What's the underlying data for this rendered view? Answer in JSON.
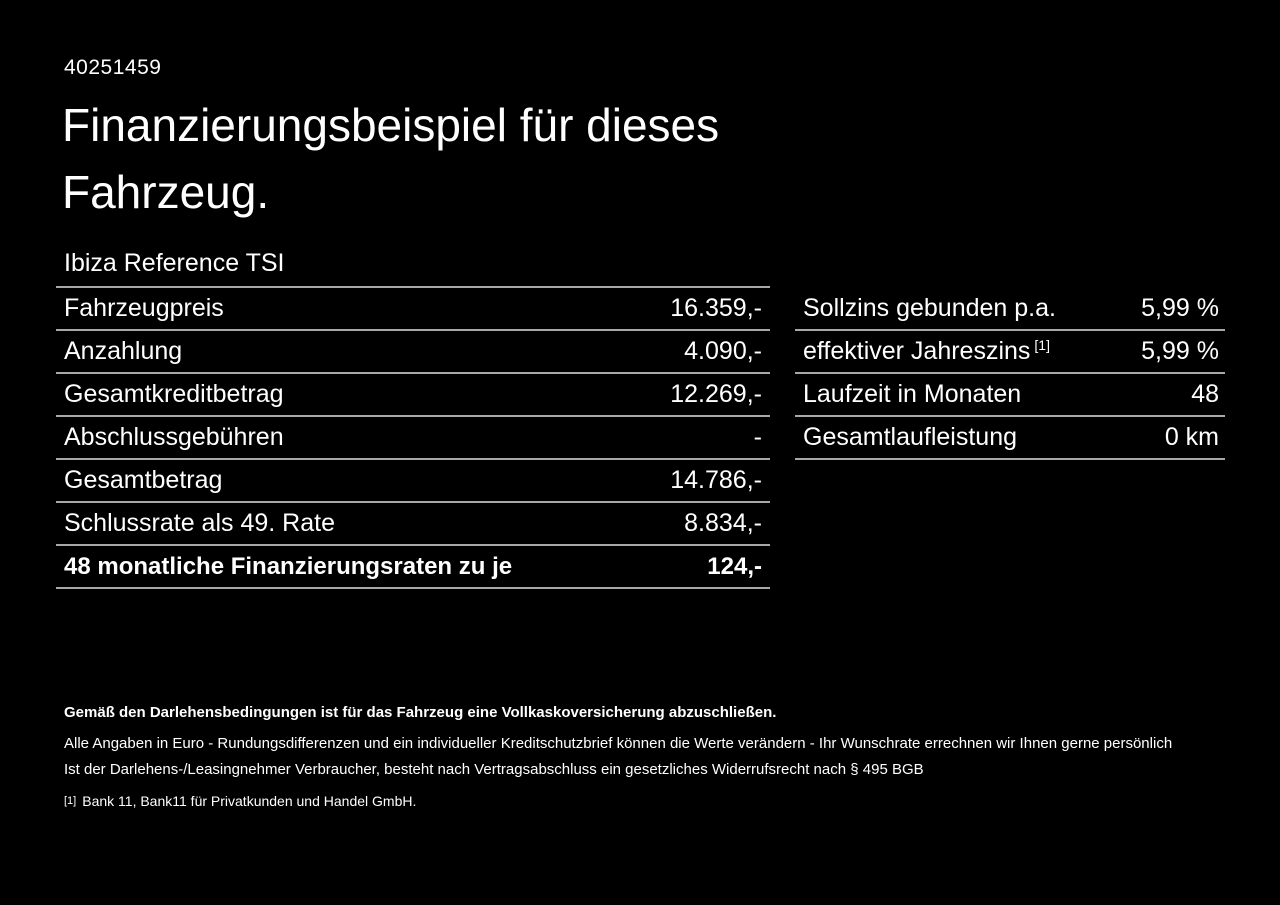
{
  "page": {
    "id_number": "40251459",
    "title_line1": "Finanzierungsbeispiel für dieses",
    "title_line2": "Fahrzeug.",
    "subtitle": "Ibiza Reference TSI"
  },
  "finance_table": {
    "rows": [
      {
        "label": "Fahrzeugpreis",
        "value": "16.359,-"
      },
      {
        "label": "Anzahlung",
        "value": "4.090,-"
      },
      {
        "label": "Gesamtkreditbetrag",
        "value": "12.269,-"
      },
      {
        "label": "Abschlussgebühren",
        "value": "-"
      },
      {
        "label": "Gesamtbetrag",
        "value": "14.786,-"
      },
      {
        "label": "Schlussrate als 49. Rate",
        "value": "8.834,-"
      },
      {
        "label": "48 monatliche Finanzierungsraten zu je",
        "value": "124,-"
      }
    ]
  },
  "conditions_table": {
    "rows": [
      {
        "label": "Sollzins gebunden p.a.",
        "sup": "",
        "value": "5,99 %"
      },
      {
        "label": "effektiver Jahreszins",
        "sup": "[1]",
        "value": "5,99 %"
      },
      {
        "label": "Laufzeit in Monaten",
        "sup": "",
        "value": "48"
      },
      {
        "label": "Gesamtlaufleistung",
        "sup": "",
        "value": "0 km"
      }
    ]
  },
  "footnotes": {
    "insurance_note": "Gemäß den Darlehensbedingungen ist für das Fahrzeug eine Vollkaskoversicherung abzuschließen.",
    "disclaimer_1": "Alle Angaben in Euro - Rundungsdifferenzen und ein individueller Kreditschutzbrief können die Werte verändern - Ihr Wunschrate errechnen wir Ihnen gerne persönlich",
    "disclaimer_2": "Ist der Darlehens-/Leasingnehmer Verbraucher, besteht nach Vertragsabschluss ein gesetzliches Widerrufsrecht nach § 495 BGB",
    "bank_ref_marker": "[1]",
    "bank_ref": "Bank 11, Bank11 für Privatkunden und Handel GmbH."
  },
  "colors": {
    "background": "#000000",
    "text": "#ffffff",
    "rule": "#a8a8a8"
  }
}
